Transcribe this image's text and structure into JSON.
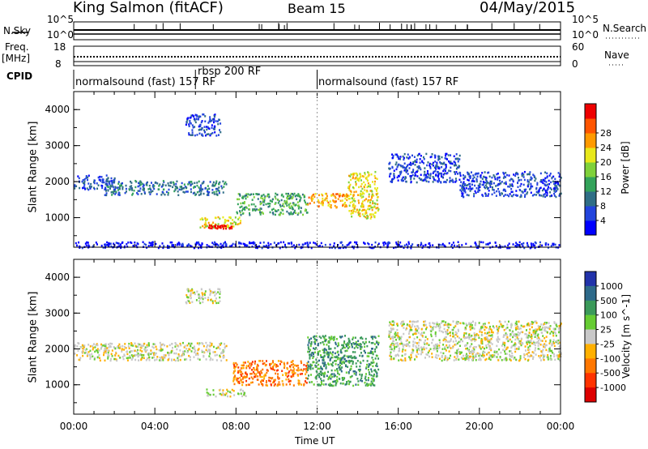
{
  "header": {
    "station": "King Salmon (fitACF)",
    "beam": "Beam 15",
    "date": "04/May/2015"
  },
  "strips": {
    "nsky_label": "N.Sky",
    "nsky_ticks": [
      "10^5",
      "10^0"
    ],
    "nsearch_label": "N.Search",
    "nsearch_ticks": [
      "10^5",
      "10^0"
    ],
    "freq_label_1": "Freq.",
    "freq_label_2": "[MHz]",
    "freq_ticks": [
      "18",
      "8"
    ],
    "nave_label": "Nave",
    "nave_ticks": [
      "60",
      "0"
    ],
    "cpid_label": "CPID"
  },
  "cpid_modes": [
    {
      "name": "normalsound (fast) 157 RF",
      "start_hour": 0
    },
    {
      "name": "rbsp 200 RF",
      "start_hour": 6
    },
    {
      "name": "normalsound (fast) 157 RF",
      "start_hour": 12
    }
  ],
  "chart_data": [
    {
      "type": "heatmap",
      "title": "",
      "quantity": "Power",
      "xlabel": "Time UT",
      "ylabel": "Slant Range [km]",
      "xlim_hours": [
        0,
        24
      ],
      "ylim": [
        180,
        4500
      ],
      "y_ticks": [
        1000,
        2000,
        3000,
        4000
      ],
      "colorbar": {
        "label": "Power [dB]",
        "ticks": [
          "4",
          "8",
          "12",
          "16",
          "20",
          "24",
          "28"
        ],
        "colors": [
          "#0000ff",
          "#2244dd",
          "#2f6e86",
          "#33a35a",
          "#7fd13a",
          "#e8e81a",
          "#ff9a00",
          "#ff5500",
          "#ee0000"
        ]
      },
      "regions": [
        {
          "t": [
            0.0,
            2.0
          ],
          "range": [
            1800,
            2200
          ],
          "level": 1
        },
        {
          "t": [
            1.5,
            7.5
          ],
          "range": [
            1650,
            2050
          ],
          "level": 2
        },
        {
          "t": [
            5.5,
            7.2
          ],
          "range": [
            3300,
            3900
          ],
          "level": 1
        },
        {
          "t": [
            6.2,
            8.2
          ],
          "range": [
            750,
            1050
          ],
          "level": 5
        },
        {
          "t": [
            6.6,
            7.8
          ],
          "range": [
            720,
            820
          ],
          "level": 8
        },
        {
          "t": [
            8.0,
            11.5
          ],
          "range": [
            1100,
            1700
          ],
          "level": 3
        },
        {
          "t": [
            11.5,
            13.5
          ],
          "range": [
            1300,
            1700
          ],
          "level": 6
        },
        {
          "t": [
            13.5,
            15.0
          ],
          "range": [
            1000,
            2300
          ],
          "level": 5
        },
        {
          "t": [
            15.5,
            19.0
          ],
          "range": [
            2000,
            2800
          ],
          "level": 1
        },
        {
          "t": [
            19.0,
            24.0
          ],
          "range": [
            1600,
            2300
          ],
          "level": 1
        },
        {
          "t": [
            0.0,
            24.0
          ],
          "range": [
            180,
            350
          ],
          "level": 0
        }
      ]
    },
    {
      "type": "heatmap",
      "title": "",
      "quantity": "Velocity",
      "xlabel": "Time UT",
      "ylabel": "Slant Range [km]",
      "xlim_hours": [
        0,
        24
      ],
      "ylim": [
        180,
        4500
      ],
      "y_ticks": [
        1000,
        2000,
        3000,
        4000
      ],
      "x_ticks": [
        "00:00",
        "04:00",
        "08:00",
        "12:00",
        "16:00",
        "20:00",
        "00:00"
      ],
      "colorbar": {
        "label": "Velocity [m s^-1]",
        "ticks": [
          "1000",
          "500",
          "100",
          "25",
          "-25",
          "-100",
          "-500",
          "-1000"
        ],
        "colors": [
          "#2233aa",
          "#2e6a8a",
          "#3b9a5a",
          "#66cc33",
          "#c8c8c8",
          "#ffb000",
          "#ff7700",
          "#ff3300",
          "#dd0000"
        ]
      },
      "regions": [
        {
          "t": [
            0.0,
            7.5
          ],
          "range": [
            1700,
            2200
          ],
          "level": 4
        },
        {
          "t": [
            5.5,
            7.2
          ],
          "range": [
            3300,
            3700
          ],
          "level": 4
        },
        {
          "t": [
            6.5,
            8.5
          ],
          "range": [
            700,
            900
          ],
          "level": 4
        },
        {
          "t": [
            7.8,
            11.5
          ],
          "range": [
            1000,
            1700
          ],
          "level": 6
        },
        {
          "t": [
            11.5,
            15.0
          ],
          "range": [
            1000,
            2400
          ],
          "level": 2
        },
        {
          "t": [
            15.5,
            24.0
          ],
          "range": [
            1700,
            2800
          ],
          "level": 4
        }
      ]
    }
  ]
}
